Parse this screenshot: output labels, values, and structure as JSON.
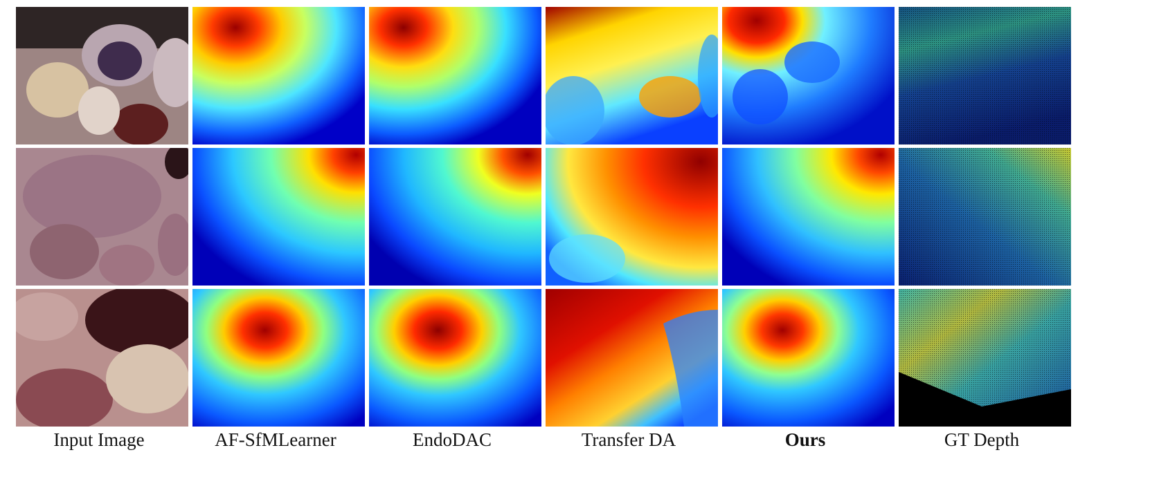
{
  "columns": [
    {
      "label": "Input Image",
      "kind": "rgb"
    },
    {
      "label": "AF-SfMLearner",
      "kind": "jet"
    },
    {
      "label": "EndoDAC",
      "kind": "jet"
    },
    {
      "label": "Transfer DA",
      "kind": "jet"
    },
    {
      "label": "Ours",
      "kind": "jet",
      "emphasis": "bold"
    },
    {
      "label": "GT Depth",
      "kind": "sparse"
    }
  ],
  "rows": 3,
  "colormap": "jet",
  "colors": {
    "background": "#ffffff",
    "jet_low": "#00008f",
    "jet_mid": "#80ff80",
    "jet_high": "#800000"
  }
}
